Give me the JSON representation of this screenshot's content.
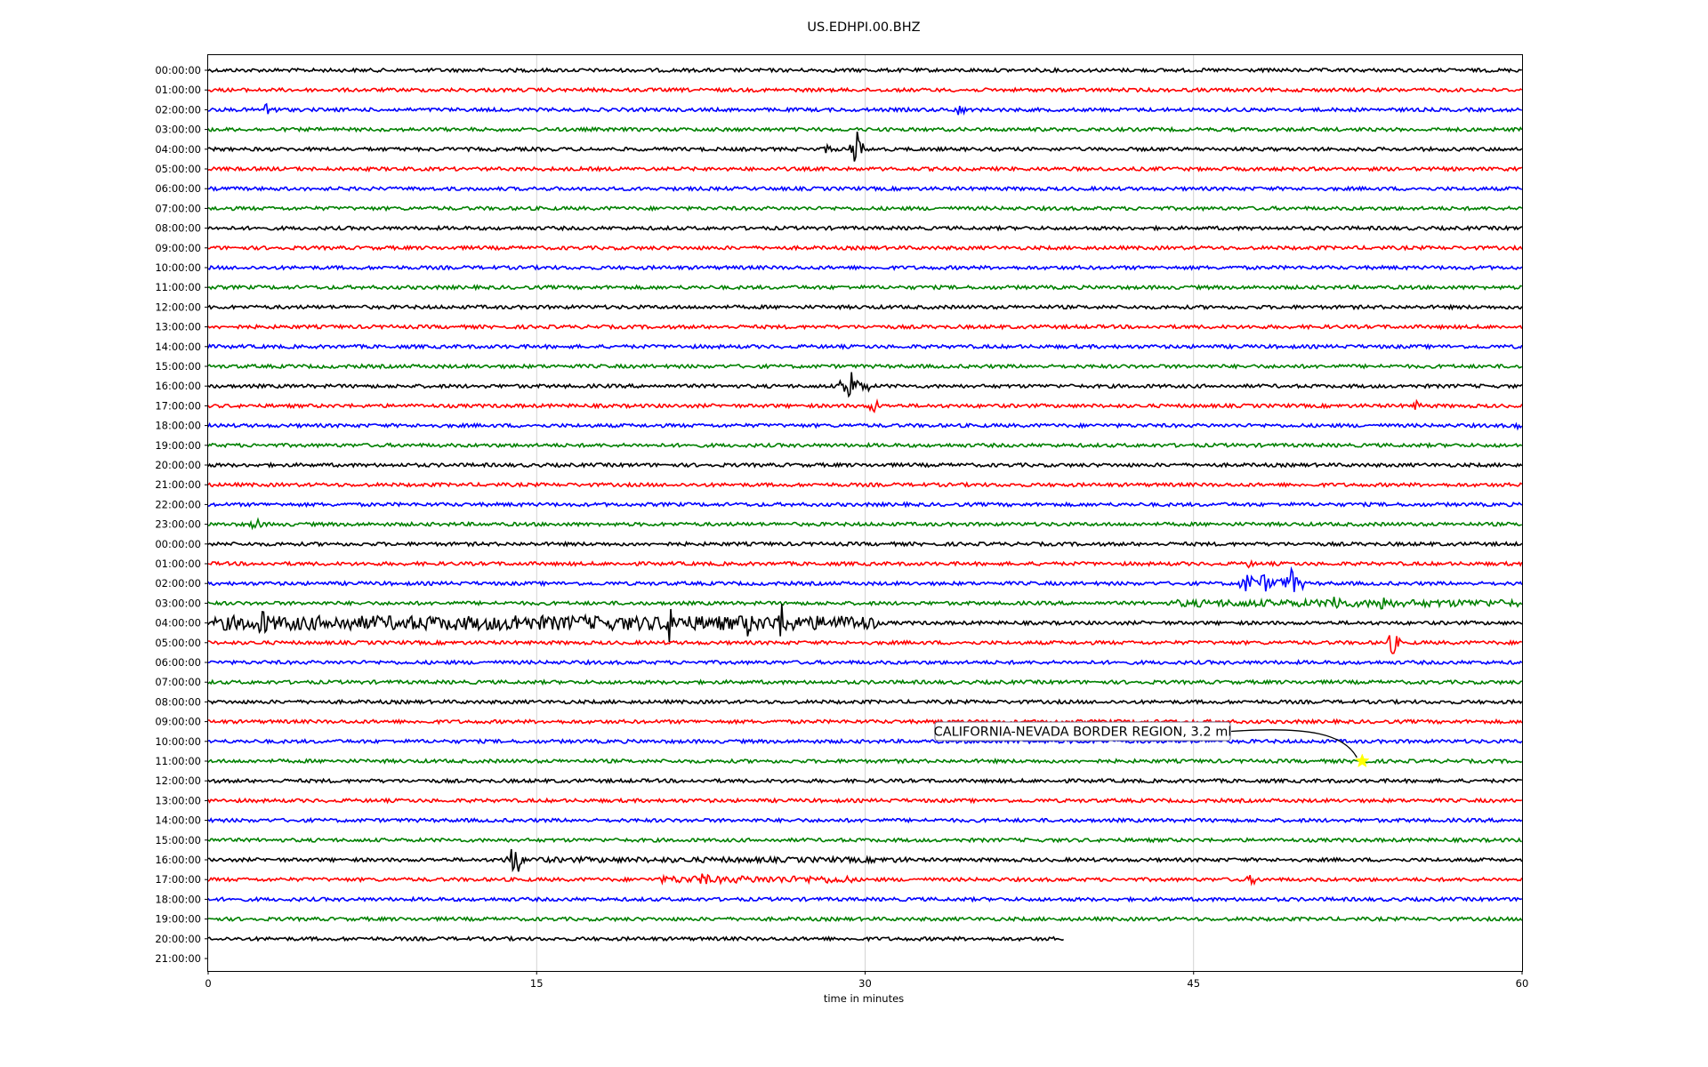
{
  "chart_data": {
    "type": "line",
    "title": "US.EDHPI.00.BHZ",
    "xlabel": "time in minutes",
    "ylabel": "",
    "xlim": [
      0,
      60
    ],
    "x_ticks": [
      "0",
      "15",
      "30",
      "45",
      "60"
    ],
    "x_tick_values": [
      0,
      15,
      30,
      45,
      60
    ],
    "grid": "vertical",
    "row_labels": [
      "00:00:00",
      "01:00:00",
      "02:00:00",
      "03:00:00",
      "04:00:00",
      "05:00:00",
      "06:00:00",
      "07:00:00",
      "08:00:00",
      "09:00:00",
      "10:00:00",
      "11:00:00",
      "12:00:00",
      "13:00:00",
      "14:00:00",
      "15:00:00",
      "16:00:00",
      "17:00:00",
      "18:00:00",
      "19:00:00",
      "20:00:00",
      "21:00:00",
      "22:00:00",
      "23:00:00",
      "00:00:00",
      "01:00:00",
      "02:00:00",
      "03:00:00",
      "04:00:00",
      "05:00:00",
      "06:00:00",
      "07:00:00",
      "08:00:00",
      "09:00:00",
      "10:00:00",
      "11:00:00",
      "12:00:00",
      "13:00:00",
      "14:00:00",
      "15:00:00",
      "16:00:00",
      "17:00:00",
      "18:00:00",
      "19:00:00",
      "20:00:00",
      "21:00:00"
    ],
    "series_colors": [
      "#000000",
      "#ff0000",
      "#0000ff",
      "#008000"
    ],
    "trace_count": 45,
    "last_trace_end_minute": 39.1,
    "spikes": [
      {
        "row": 2,
        "minute": 2.8,
        "amp": 12
      },
      {
        "row": 2,
        "minute": 34.3,
        "amp": 8
      },
      {
        "row": 4,
        "minute": 29.6,
        "amp": 22
      },
      {
        "row": 4,
        "minute": 28.3,
        "amp": 6
      },
      {
        "row": 16,
        "minute": 29.3,
        "amp": 26
      },
      {
        "row": 17,
        "minute": 30.4,
        "amp": 9
      },
      {
        "row": 17,
        "minute": 55.2,
        "amp": 6
      },
      {
        "row": 18,
        "minute": 59.8,
        "amp": 5
      },
      {
        "row": 23,
        "minute": 2.2,
        "amp": 8
      },
      {
        "row": 25,
        "minute": 47.5,
        "amp": 5
      },
      {
        "row": 26,
        "minute": 47.5,
        "amp": 14
      },
      {
        "row": 26,
        "minute": 48.2,
        "amp": 12
      },
      {
        "row": 26,
        "minute": 49.5,
        "amp": 18
      },
      {
        "row": 27,
        "minute": 51.5,
        "amp": 14
      },
      {
        "row": 27,
        "minute": 53.6,
        "amp": 12
      },
      {
        "row": 28,
        "minute": 2.5,
        "amp": 18
      },
      {
        "row": 28,
        "minute": 21.1,
        "amp": 24
      },
      {
        "row": 28,
        "minute": 26.3,
        "amp": 30
      },
      {
        "row": 28,
        "minute": 24.6,
        "amp": 18
      },
      {
        "row": 28,
        "minute": 14.0,
        "amp": 14
      },
      {
        "row": 29,
        "minute": 54.1,
        "amp": 14
      },
      {
        "row": 40,
        "minute": 14.0,
        "amp": 22
      },
      {
        "row": 41,
        "minute": 22.6,
        "amp": 10
      },
      {
        "row": 41,
        "minute": 47.7,
        "amp": 7
      }
    ],
    "noisy_segments": [
      {
        "row": 28,
        "from": 0.3,
        "to": 30.6,
        "amp": 8
      },
      {
        "row": 27,
        "from": 44,
        "to": 60,
        "amp": 4
      },
      {
        "row": 26,
        "from": 47,
        "to": 50,
        "amp": 6
      },
      {
        "row": 16,
        "from": 28.8,
        "to": 30.2,
        "amp": 6
      },
      {
        "row": 41,
        "from": 20.5,
        "to": 29.5,
        "amp": 4
      },
      {
        "row": 40,
        "from": 13.3,
        "to": 32,
        "amp": 3
      }
    ],
    "event_marker": {
      "row": 35,
      "minute": 52.7,
      "color": "#ffff00"
    },
    "annotations": [
      {
        "text": "CALIFORNIA-NEVADA BORDER REGION, 3.2 ml",
        "row": 35,
        "minute": 52.7
      }
    ]
  }
}
